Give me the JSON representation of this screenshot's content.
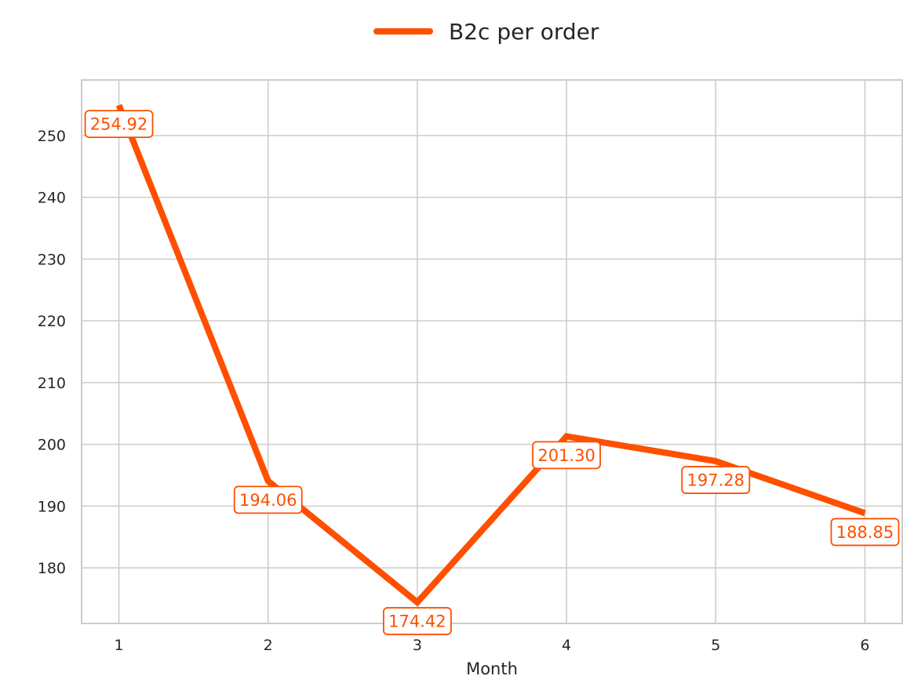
{
  "chart_data": {
    "type": "line",
    "title": "",
    "xlabel": "Month",
    "ylabel": "",
    "x": [
      1,
      2,
      3,
      4,
      5,
      6
    ],
    "xlim": [
      0.75,
      6.25
    ],
    "ylim": [
      171,
      259
    ],
    "yticks": [
      180,
      190,
      200,
      210,
      220,
      230,
      240,
      250
    ],
    "grid": true,
    "legend": "top-center",
    "series": [
      {
        "name": "B2c per order",
        "color": "#ff4f00",
        "values": [
          254.92,
          194.06,
          174.42,
          201.3,
          197.28,
          188.85
        ],
        "labels": [
          "254.92",
          "194.06",
          "174.42",
          "201.30",
          "197.28",
          "188.85"
        ]
      }
    ]
  }
}
